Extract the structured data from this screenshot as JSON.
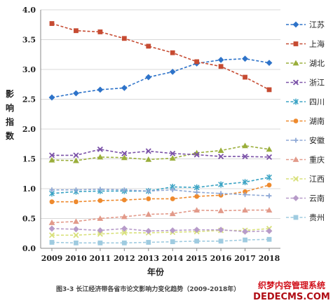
{
  "chart_data": {
    "type": "line",
    "x": [
      "2009",
      "2010",
      "2011",
      "2012",
      "2013",
      "2014",
      "2015",
      "2016",
      "2017",
      "2018"
    ],
    "xlabel": "年份",
    "ylabel": "影响指数",
    "ylim": [
      0,
      4
    ],
    "yticks": [
      "0.0",
      "0.5",
      "1.0",
      "1.5",
      "2.0",
      "2.5",
      "3.0",
      "3.5",
      "4.0"
    ],
    "grid": "horizontal",
    "legend_position": "right",
    "caption": "图3-3 长江经济带各省市论文影响力变化趋势（2009-2018年）",
    "series": [
      {
        "name": "江苏",
        "color": "#2e73c9",
        "marker": "diamond",
        "values": [
          2.53,
          2.6,
          2.66,
          2.69,
          2.87,
          2.96,
          3.1,
          3.16,
          3.18,
          3.11
        ]
      },
      {
        "name": "上海",
        "color": "#c64b32",
        "marker": "square",
        "values": [
          3.77,
          3.65,
          3.63,
          3.52,
          3.39,
          3.28,
          3.13,
          3.05,
          2.87,
          2.66
        ]
      },
      {
        "name": "湖北",
        "color": "#9aae3b",
        "marker": "triangle",
        "values": [
          1.48,
          1.47,
          1.53,
          1.52,
          1.49,
          1.51,
          1.6,
          1.64,
          1.72,
          1.66
        ]
      },
      {
        "name": "浙江",
        "color": "#7b52a8",
        "marker": "x",
        "values": [
          1.56,
          1.56,
          1.66,
          1.59,
          1.63,
          1.59,
          1.57,
          1.54,
          1.54,
          1.53
        ]
      },
      {
        "name": "四川",
        "color": "#3aa3c4",
        "marker": "star",
        "values": [
          0.92,
          0.95,
          0.96,
          0.96,
          0.96,
          1.03,
          1.02,
          1.07,
          1.11,
          1.19
        ]
      },
      {
        "name": "湖南",
        "color": "#ee8a2e",
        "marker": "circle",
        "values": [
          0.78,
          0.78,
          0.8,
          0.81,
          0.83,
          0.83,
          0.87,
          0.89,
          0.95,
          1.06
        ]
      },
      {
        "name": "安徽",
        "color": "#8fa9d6",
        "marker": "plus",
        "values": [
          0.98,
          0.98,
          0.99,
          0.98,
          0.96,
          0.98,
          0.94,
          0.92,
          0.9,
          0.88
        ]
      },
      {
        "name": "重庆",
        "color": "#e29a8a",
        "marker": "triangle",
        "values": [
          0.43,
          0.45,
          0.5,
          0.53,
          0.57,
          0.58,
          0.64,
          0.63,
          0.64,
          0.64
        ]
      },
      {
        "name": "江西",
        "color": "#d8e07a",
        "marker": "x",
        "values": [
          0.22,
          0.22,
          0.24,
          0.26,
          0.26,
          0.27,
          0.28,
          0.3,
          0.3,
          0.33
        ]
      },
      {
        "name": "云南",
        "color": "#b79bc9",
        "marker": "diamond",
        "values": [
          0.33,
          0.32,
          0.3,
          0.33,
          0.29,
          0.3,
          0.31,
          0.31,
          0.28,
          0.29
        ]
      },
      {
        "name": "贵州",
        "color": "#9fcbe0",
        "marker": "square",
        "values": [
          0.1,
          0.09,
          0.09,
          0.09,
          0.1,
          0.11,
          0.12,
          0.12,
          0.14,
          0.15
        ]
      }
    ]
  },
  "watermark": {
    "line1": "织梦内容管理系统",
    "line2": "DEDECMS.COM"
  }
}
